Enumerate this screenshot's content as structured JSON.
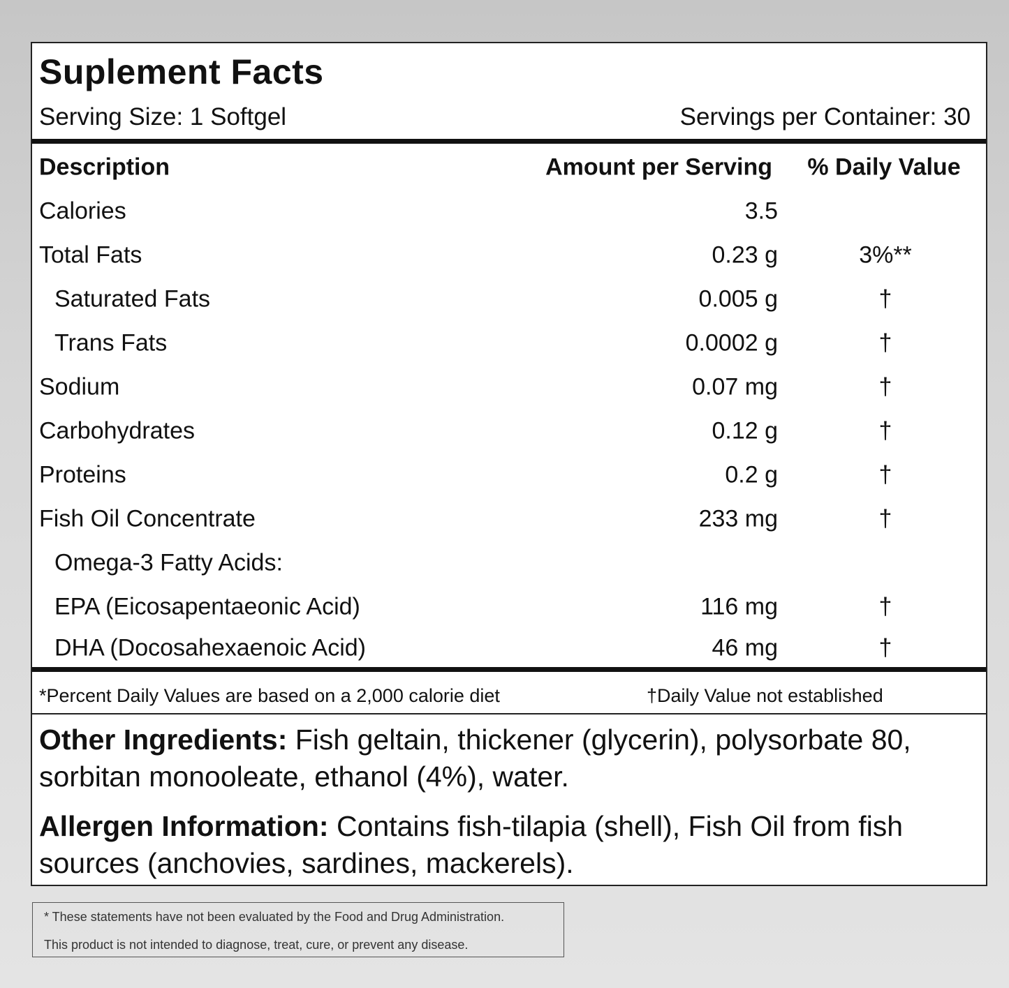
{
  "title": "Suplement Facts",
  "serving_size": "Serving Size: 1 Softgel",
  "servings_per_container": "Servings per Container: 30",
  "columns": {
    "description": "Description",
    "amount": "Amount per Serving",
    "daily_value": "% Daily Value"
  },
  "rows": [
    {
      "name": "Calories",
      "amount": "3.5",
      "dv": ""
    },
    {
      "name": "Total Fats",
      "amount": "0.23 g",
      "dv": "3%**"
    },
    {
      "name": "Saturated Fats",
      "amount": "0.005 g",
      "dv": "†"
    },
    {
      "name": "Trans Fats",
      "amount": "0.0002 g",
      "dv": "†"
    },
    {
      "name": "Sodium",
      "amount": "0.07 mg",
      "dv": "†"
    },
    {
      "name": "Carbohydrates",
      "amount": "0.12 g",
      "dv": "†"
    },
    {
      "name": "Proteins",
      "amount": "0.2 g",
      "dv": "†"
    },
    {
      "name": "Fish Oil Concentrate",
      "amount": "233 mg",
      "dv": "†"
    },
    {
      "name": "Omega-3 Fatty Acids:",
      "amount": "",
      "dv": ""
    },
    {
      "name": "EPA (Eicosapentaeonic Acid)",
      "amount": "116 mg",
      "dv": "†"
    },
    {
      "name": "DHA (Docosahexaenoic Acid)",
      "amount": "46 mg",
      "dv": "†"
    }
  ],
  "footnote_percent": "*Percent Daily Values are based on a 2,000 calorie diet",
  "footnote_dagger": "†Daily Value not established",
  "other_ingredients": {
    "label": "Other Ingredients:",
    "text": " Fish geltain, thickener (glycerin), polysorbate 80, sorbitan monooleate, ethanol (4%), water."
  },
  "allergen": {
    "label": "Allergen Information:",
    "text": " Contains fish-tilapia (shell), Fish Oil from fish sources (anchovies, sardines, mackerels)."
  },
  "disclaimer": [
    "* These statements have not been evaluated by the Food and Drug Administration.",
    "This product is not intended to diagnose, treat, cure, or prevent any disease."
  ]
}
